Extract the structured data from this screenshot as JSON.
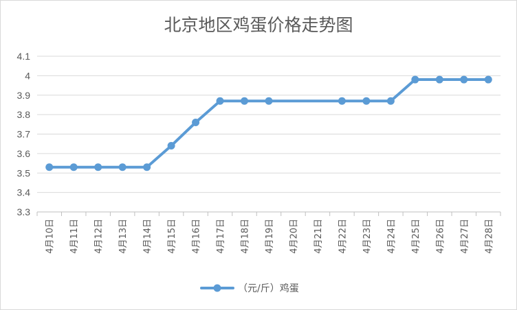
{
  "chart_data": {
    "type": "line",
    "title": "北京地区鸡蛋价格走势图",
    "xlabel": "",
    "ylabel": "",
    "ylim": [
      3.3,
      4.1
    ],
    "yticks": [
      "3.3",
      "3.4",
      "3.5",
      "3.6",
      "3.7",
      "3.8",
      "3.9",
      "4",
      "4.1"
    ],
    "grid": true,
    "legend_position": "bottom",
    "categories": [
      "4月10日",
      "4月11日",
      "4月12日",
      "4月13日",
      "4月14日",
      "4月15日",
      "4月16日",
      "4月17日",
      "4月18日",
      "4月19日",
      "4月20日",
      "4月21日",
      "4月22日",
      "4月23日",
      "4月24日",
      "4月25日",
      "4月26日",
      "4月27日",
      "4月28日"
    ],
    "series": [
      {
        "name": "（元/斤）鸡蛋",
        "color": "#5b9bd5",
        "values": [
          3.53,
          3.53,
          3.53,
          3.53,
          3.53,
          3.64,
          3.76,
          3.87,
          3.87,
          3.87,
          null,
          null,
          3.87,
          3.87,
          3.87,
          3.98,
          3.98,
          3.98,
          3.98
        ]
      }
    ]
  }
}
